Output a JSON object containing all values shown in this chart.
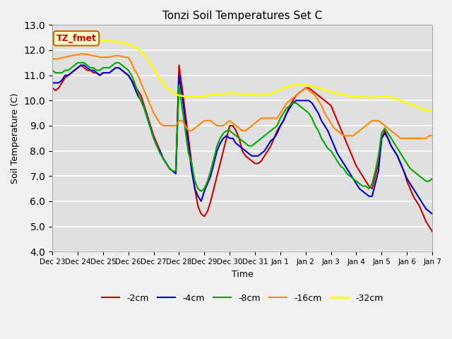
{
  "title": "Tonzi Soil Temperatures Set C",
  "xlabel": "Time",
  "ylabel": "Soil Temperature (C)",
  "ylim": [
    4.0,
    13.0
  ],
  "yticks": [
    4.0,
    5.0,
    6.0,
    7.0,
    8.0,
    9.0,
    10.0,
    11.0,
    12.0,
    13.0
  ],
  "x_tick_positions": [
    0,
    1,
    2,
    3,
    4,
    5,
    6,
    7,
    8,
    9,
    10,
    11,
    12,
    13,
    14,
    15
  ],
  "x_labels": [
    "Dec 23",
    "Dec 24",
    "Dec 25",
    "Dec 26",
    "Dec 27",
    "Dec 28",
    "Dec 29",
    "Dec 30",
    "Dec 31",
    "Jan 1",
    "Jan 2",
    "Jan 3",
    "Jan 4",
    "Jan 5",
    "Jan 6",
    "Jan 7"
  ],
  "annotation_text": "TZ_fmet",
  "annotation_color": "#cc0000",
  "annotation_bg": "#ffffcc",
  "annotation_border": "#cc6600",
  "fig_bg": "#f0f0f0",
  "plot_bg": "#e0e0e0",
  "series_order": [
    "-2cm",
    "-4cm",
    "-8cm",
    "-16cm",
    "-32cm"
  ],
  "series": {
    "-2cm": {
      "color": "#cc0000",
      "lw": 1.5
    },
    "-4cm": {
      "color": "#0000cc",
      "lw": 1.5
    },
    "-8cm": {
      "color": "#00aa00",
      "lw": 1.5
    },
    "-16cm": {
      "color": "#ff8800",
      "lw": 1.5
    },
    "-32cm": {
      "color": "#ffff00",
      "lw": 2.0
    }
  },
  "t": [
    0.0,
    0.125,
    0.25,
    0.375,
    0.5,
    0.625,
    0.75,
    0.875,
    1.0,
    1.125,
    1.25,
    1.375,
    1.5,
    1.625,
    1.75,
    1.875,
    2.0,
    2.125,
    2.25,
    2.375,
    2.5,
    2.625,
    2.75,
    2.875,
    3.0,
    3.125,
    3.25,
    3.375,
    3.5,
    3.625,
    3.75,
    3.875,
    4.0,
    4.125,
    4.25,
    4.375,
    4.5,
    4.625,
    4.75,
    4.875,
    5.0,
    5.125,
    5.25,
    5.375,
    5.5,
    5.625,
    5.75,
    5.875,
    6.0,
    6.125,
    6.25,
    6.375,
    6.5,
    6.625,
    6.75,
    6.875,
    7.0,
    7.125,
    7.25,
    7.375,
    7.5,
    7.625,
    7.75,
    7.875,
    8.0,
    8.125,
    8.25,
    8.375,
    8.5,
    8.625,
    8.75,
    8.875,
    9.0,
    9.125,
    9.25,
    9.375,
    9.5,
    9.625,
    9.75,
    9.875,
    10.0,
    10.125,
    10.25,
    10.375,
    10.5,
    10.625,
    10.75,
    10.875,
    11.0,
    11.125,
    11.25,
    11.375,
    11.5,
    11.625,
    11.75,
    11.875,
    12.0,
    12.125,
    12.25,
    12.375,
    12.5,
    12.625,
    12.75,
    12.875,
    13.0,
    13.125,
    13.25,
    13.375,
    13.5,
    13.625,
    13.75,
    13.875,
    14.0,
    14.125,
    14.25,
    14.375,
    14.5,
    14.625,
    14.75,
    14.875,
    15.0
  ],
  "y_2cm": [
    10.5,
    10.4,
    10.5,
    10.7,
    10.9,
    11.0,
    11.1,
    11.2,
    11.3,
    11.4,
    11.3,
    11.2,
    11.2,
    11.1,
    11.1,
    11.0,
    11.1,
    11.1,
    11.1,
    11.2,
    11.3,
    11.3,
    11.2,
    11.1,
    11.0,
    10.8,
    10.6,
    10.4,
    10.2,
    9.8,
    9.4,
    9.0,
    8.6,
    8.3,
    8.0,
    7.7,
    7.5,
    7.3,
    7.2,
    7.1,
    11.4,
    10.5,
    9.5,
    8.5,
    7.5,
    6.5,
    5.8,
    5.5,
    5.4,
    5.6,
    6.0,
    6.5,
    7.0,
    7.5,
    8.0,
    8.5,
    9.0,
    9.0,
    8.8,
    8.5,
    8.0,
    7.8,
    7.7,
    7.6,
    7.5,
    7.5,
    7.6,
    7.8,
    8.0,
    8.2,
    8.5,
    8.8,
    9.0,
    9.2,
    9.5,
    9.8,
    10.0,
    10.2,
    10.3,
    10.4,
    10.5,
    10.5,
    10.4,
    10.3,
    10.2,
    10.1,
    10.0,
    9.9,
    9.8,
    9.5,
    9.2,
    8.9,
    8.6,
    8.3,
    8.0,
    7.7,
    7.4,
    7.2,
    7.0,
    6.8,
    6.6,
    6.5,
    7.0,
    7.5,
    8.5,
    8.8,
    8.5,
    8.2,
    8.0,
    7.8,
    7.5,
    7.2,
    6.8,
    6.5,
    6.2,
    6.0,
    5.8,
    5.5,
    5.2,
    5.0,
    4.8
  ],
  "y_4cm": [
    10.7,
    10.7,
    10.7,
    10.8,
    11.0,
    11.0,
    11.1,
    11.2,
    11.3,
    11.4,
    11.4,
    11.3,
    11.2,
    11.2,
    11.1,
    11.0,
    11.1,
    11.1,
    11.1,
    11.2,
    11.3,
    11.3,
    11.2,
    11.1,
    11.0,
    10.8,
    10.5,
    10.2,
    10.0,
    9.7,
    9.3,
    8.9,
    8.5,
    8.2,
    8.0,
    7.7,
    7.5,
    7.3,
    7.2,
    7.1,
    11.0,
    10.2,
    9.2,
    8.2,
    7.2,
    6.5,
    6.2,
    6.0,
    6.4,
    6.7,
    7.0,
    7.5,
    8.0,
    8.3,
    8.5,
    8.6,
    8.5,
    8.5,
    8.3,
    8.2,
    8.1,
    8.0,
    7.9,
    7.8,
    7.8,
    7.8,
    7.9,
    8.0,
    8.2,
    8.4,
    8.5,
    8.7,
    9.0,
    9.2,
    9.5,
    9.7,
    9.9,
    10.0,
    10.0,
    10.0,
    10.0,
    10.0,
    9.9,
    9.7,
    9.5,
    9.2,
    9.0,
    8.8,
    8.5,
    8.2,
    7.9,
    7.7,
    7.5,
    7.3,
    7.1,
    6.9,
    6.7,
    6.5,
    6.4,
    6.3,
    6.2,
    6.2,
    6.7,
    7.2,
    8.5,
    8.7,
    8.5,
    8.2,
    8.0,
    7.8,
    7.5,
    7.2,
    6.9,
    6.7,
    6.5,
    6.3,
    6.1,
    5.9,
    5.7,
    5.6,
    5.5
  ],
  "y_8cm": [
    11.2,
    11.1,
    11.1,
    11.1,
    11.2,
    11.2,
    11.3,
    11.4,
    11.5,
    11.5,
    11.5,
    11.4,
    11.3,
    11.3,
    11.2,
    11.2,
    11.3,
    11.3,
    11.3,
    11.4,
    11.5,
    11.5,
    11.4,
    11.3,
    11.2,
    11.0,
    10.7,
    10.3,
    10.0,
    9.7,
    9.3,
    8.9,
    8.5,
    8.2,
    7.9,
    7.7,
    7.5,
    7.3,
    7.2,
    7.2,
    10.6,
    9.7,
    8.8,
    7.9,
    7.5,
    6.8,
    6.5,
    6.4,
    6.5,
    6.8,
    7.2,
    7.7,
    8.2,
    8.5,
    8.7,
    8.8,
    8.8,
    8.7,
    8.6,
    8.5,
    8.4,
    8.3,
    8.2,
    8.2,
    8.3,
    8.4,
    8.5,
    8.6,
    8.7,
    8.8,
    8.9,
    9.0,
    9.3,
    9.5,
    9.7,
    9.8,
    9.9,
    9.9,
    9.8,
    9.7,
    9.6,
    9.5,
    9.3,
    9.0,
    8.8,
    8.5,
    8.3,
    8.1,
    8.0,
    7.8,
    7.6,
    7.4,
    7.3,
    7.1,
    7.0,
    6.9,
    6.8,
    6.7,
    6.6,
    6.6,
    6.5,
    6.7,
    7.2,
    7.8,
    8.7,
    8.9,
    8.7,
    8.5,
    8.3,
    8.1,
    7.9,
    7.7,
    7.5,
    7.3,
    7.2,
    7.1,
    7.0,
    6.9,
    6.8,
    6.8,
    6.9
  ],
  "y_16cm": [
    11.65,
    11.65,
    11.65,
    11.7,
    11.72,
    11.75,
    11.78,
    11.8,
    11.82,
    11.85,
    11.85,
    11.83,
    11.8,
    11.78,
    11.75,
    11.72,
    11.72,
    11.72,
    11.72,
    11.75,
    11.78,
    11.78,
    11.75,
    11.72,
    11.7,
    11.5,
    11.2,
    11.0,
    10.7,
    10.4,
    10.1,
    9.8,
    9.5,
    9.3,
    9.1,
    9.0,
    9.0,
    9.0,
    9.0,
    9.0,
    9.2,
    9.2,
    9.0,
    8.8,
    8.8,
    8.9,
    9.0,
    9.1,
    9.2,
    9.2,
    9.2,
    9.1,
    9.0,
    9.0,
    9.0,
    9.1,
    9.2,
    9.1,
    9.0,
    8.9,
    8.8,
    8.8,
    8.9,
    9.0,
    9.1,
    9.2,
    9.3,
    9.3,
    9.3,
    9.3,
    9.3,
    9.3,
    9.5,
    9.7,
    9.9,
    10.0,
    10.1,
    10.2,
    10.3,
    10.4,
    10.5,
    10.4,
    10.3,
    10.2,
    10.0,
    9.8,
    9.5,
    9.3,
    9.1,
    8.9,
    8.8,
    8.7,
    8.6,
    8.6,
    8.6,
    8.6,
    8.7,
    8.8,
    8.9,
    9.0,
    9.1,
    9.2,
    9.2,
    9.2,
    9.1,
    9.0,
    8.9,
    8.8,
    8.7,
    8.6,
    8.5,
    8.5,
    8.5,
    8.5,
    8.5,
    8.5,
    8.5,
    8.5,
    8.5,
    8.6,
    8.6
  ],
  "y_32cm": [
    12.3,
    12.32,
    12.35,
    12.37,
    12.4,
    12.42,
    12.43,
    12.44,
    12.45,
    12.45,
    12.44,
    12.43,
    12.42,
    12.41,
    12.4,
    12.39,
    12.38,
    12.37,
    12.36,
    12.35,
    12.34,
    12.33,
    12.3,
    12.27,
    12.23,
    12.18,
    12.12,
    12.05,
    11.95,
    11.82,
    11.65,
    11.45,
    11.25,
    11.05,
    10.85,
    10.7,
    10.55,
    10.43,
    10.33,
    10.25,
    10.2,
    10.18,
    10.16,
    10.15,
    10.14,
    10.14,
    10.15,
    10.16,
    10.18,
    10.2,
    10.22,
    10.24,
    10.25,
    10.26,
    10.27,
    10.28,
    10.29,
    10.29,
    10.28,
    10.27,
    10.26,
    10.25,
    10.24,
    10.23,
    10.22,
    10.21,
    10.21,
    10.22,
    10.25,
    10.28,
    10.32,
    10.37,
    10.43,
    10.5,
    10.55,
    10.58,
    10.6,
    10.62,
    10.63,
    10.63,
    10.62,
    10.6,
    10.57,
    10.53,
    10.5,
    10.46,
    10.42,
    10.38,
    10.35,
    10.32,
    10.28,
    10.25,
    10.22,
    10.2,
    10.18,
    10.17,
    10.16,
    10.15,
    10.14,
    10.13,
    10.12,
    10.12,
    10.13,
    10.15,
    10.17,
    10.17,
    10.15,
    10.12,
    10.1,
    10.05,
    10.0,
    9.95,
    9.9,
    9.85,
    9.8,
    9.75,
    9.7,
    9.65,
    9.62,
    9.6,
    9.58
  ]
}
